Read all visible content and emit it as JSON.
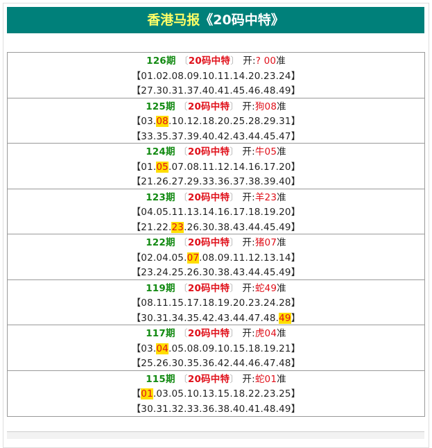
{
  "header": {
    "title_a": "香港马报",
    "title_b": "《20码中特》"
  },
  "colors": {
    "header_bg": "#00807a",
    "issue": "#128a12",
    "label": "#e0101a",
    "highlight": "#ffde00"
  },
  "rows": [
    {
      "issue": "126期",
      "label": "20码中特",
      "open": "开:",
      "result": "? 00",
      "suffix": "准",
      "hit": "",
      "line1": [
        "01",
        "02",
        "08",
        "09",
        "10",
        "11",
        "14",
        "20",
        "23",
        "24"
      ],
      "line2": [
        "27",
        "30",
        "31",
        "37",
        "40",
        "41",
        "45",
        "46",
        "48",
        "49"
      ]
    },
    {
      "issue": "125期",
      "label": "20码中特",
      "open": "开:",
      "result": "狗08",
      "suffix": "准",
      "hit": "08",
      "line1": [
        "03",
        "08",
        "10",
        "12",
        "18",
        "20",
        "25",
        "28",
        "29",
        "31"
      ],
      "line2": [
        "33",
        "35",
        "37",
        "39",
        "40",
        "42",
        "43",
        "44",
        "45",
        "47"
      ]
    },
    {
      "issue": "124期",
      "label": "20码中特",
      "open": "开:",
      "result": "牛05",
      "suffix": "准",
      "hit": "05",
      "line1": [
        "01",
        "05",
        "07",
        "08",
        "11",
        "12",
        "14",
        "16",
        "17",
        "20"
      ],
      "line2": [
        "21",
        "26",
        "27",
        "29",
        "33",
        "36",
        "37",
        "38",
        "39",
        "40"
      ]
    },
    {
      "issue": "123期",
      "label": "20码中特",
      "open": "开:",
      "result": "羊23",
      "suffix": "准",
      "hit": "23",
      "line1": [
        "04",
        "05",
        "11",
        "13",
        "14",
        "16",
        "17",
        "18",
        "19",
        "20"
      ],
      "line2": [
        "21",
        "22",
        "23",
        "26",
        "30",
        "38",
        "43",
        "44",
        "45",
        "49"
      ]
    },
    {
      "issue": "122期",
      "label": "20码中特",
      "open": "开:",
      "result": "猪07",
      "suffix": "准",
      "hit": "07",
      "line1": [
        "02",
        "04",
        "05",
        "07",
        "08",
        "09",
        "11",
        "12",
        "13",
        "14"
      ],
      "line2": [
        "23",
        "24",
        "25",
        "26",
        "30",
        "38",
        "43",
        "44",
        "45",
        "49"
      ]
    },
    {
      "issue": "119期",
      "label": "20码中特",
      "open": "开:",
      "result": "蛇49",
      "suffix": "准",
      "hit": "49",
      "line1": [
        "08",
        "11",
        "15",
        "17",
        "18",
        "19",
        "20",
        "23",
        "24",
        "28"
      ],
      "line2": [
        "30",
        "31",
        "34",
        "35",
        "42",
        "43",
        "44",
        "47",
        "48",
        "49"
      ]
    },
    {
      "issue": "117期",
      "label": "20码中特",
      "open": "开:",
      "result": "虎04",
      "suffix": "准",
      "hit": "04",
      "line1": [
        "03",
        "04",
        "05",
        "08",
        "09",
        "10",
        "15",
        "18",
        "19",
        "21"
      ],
      "line2": [
        "25",
        "26",
        "30",
        "35",
        "36",
        "42",
        "44",
        "46",
        "47",
        "48"
      ]
    },
    {
      "issue": "115期",
      "label": "20码中特",
      "open": "开:",
      "result": "蛇01",
      "suffix": "准",
      "hit": "01",
      "line1": [
        "01",
        "03",
        "05",
        "10",
        "13",
        "15",
        "18",
        "22",
        "23",
        "25"
      ],
      "line2": [
        "30",
        "31",
        "32",
        "33",
        "36",
        "38",
        "40",
        "41",
        "48",
        "49"
      ]
    }
  ]
}
